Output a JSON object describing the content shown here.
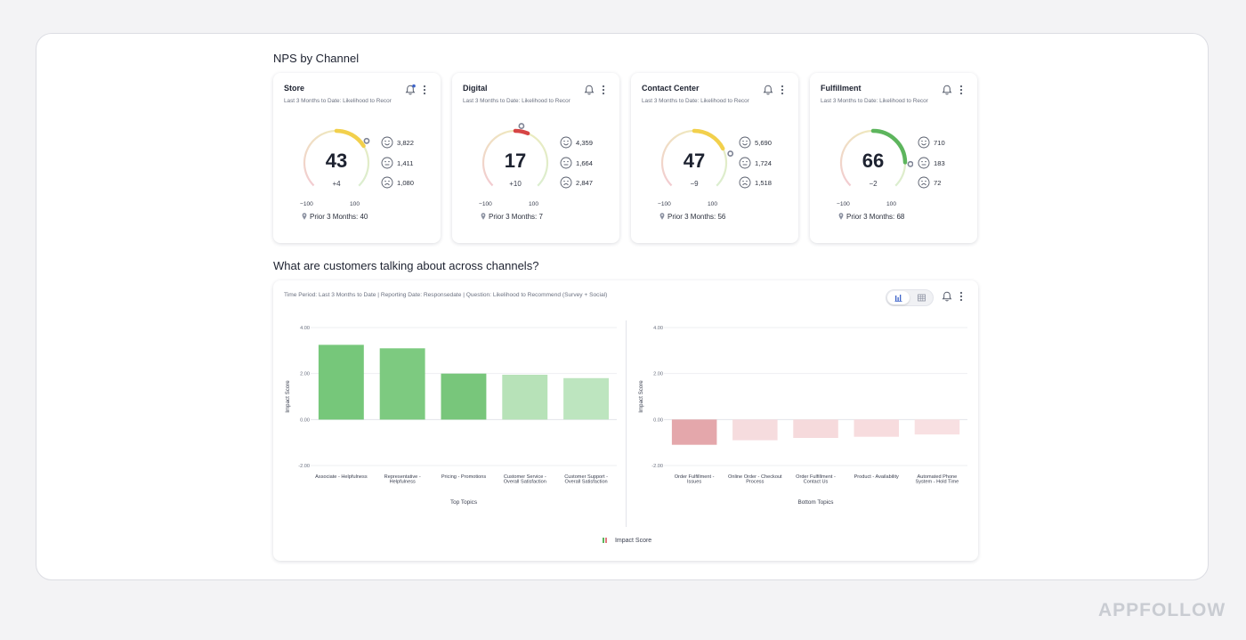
{
  "sections": {
    "nps_title": "NPS by Channel",
    "topics_title": "What are customers talking about across channels?"
  },
  "nps_cards": [
    {
      "title": "Store",
      "subtitle": "Last 3 Months to Date: Likelihood to Recor",
      "score": 43,
      "score_label": "43",
      "delta": "+4",
      "min": "−100",
      "max": "100",
      "prior": "Prior 3 Months: 40",
      "prior_score": 40,
      "promoters": "3,822",
      "passives": "1,411",
      "detractors": "1,080",
      "bell_alert": true,
      "arc_color": "#f2d04c"
    },
    {
      "title": "Digital",
      "subtitle": "Last 3 Months to Date: Likelihood to Recor",
      "score": 17,
      "score_label": "17",
      "delta": "+10",
      "min": "−100",
      "max": "100",
      "prior": "Prior 3 Months: 7",
      "prior_score": 7,
      "promoters": "4,359",
      "passives": "1,664",
      "detractors": "2,847",
      "bell_alert": false,
      "arc_color": "#d64545"
    },
    {
      "title": "Contact Center",
      "subtitle": "Last 3 Months to Date: Likelihood to Recor",
      "score": 47,
      "score_label": "47",
      "delta": "−9",
      "min": "−100",
      "max": "100",
      "prior": "Prior 3 Months: 56",
      "prior_score": 56,
      "promoters": "5,690",
      "passives": "1,724",
      "detractors": "1,518",
      "bell_alert": false,
      "arc_color": "#f2d04c"
    },
    {
      "title": "Fulfillment",
      "subtitle": "Last 3 Months to Date: Likelihood to Recor",
      "score": 66,
      "score_label": "66",
      "delta": "−2",
      "min": "−100",
      "max": "100",
      "prior": "Prior 3 Months: 68",
      "prior_score": 68,
      "promoters": "710",
      "passives": "183",
      "detractors": "72",
      "bell_alert": false,
      "arc_color": "#5db55d"
    }
  ],
  "topics_panel": {
    "subtitle": "Time Period: Last 3 Months to Date | Reporting Date: Responsedate | Question: Likelihood to Recommend (Survey + Social)",
    "view_toggle": [
      "bar-chart-icon",
      "table-icon"
    ],
    "active_view": "bar-chart-icon",
    "legend": "Impact Score"
  },
  "chart_data": [
    {
      "type": "bar",
      "title": "",
      "xlabel": "Top Topics",
      "ylabel": "Impact Score",
      "ylim": [
        -2,
        4
      ],
      "yticks": [
        "4.00",
        "2.00",
        "0.00",
        "-2.00"
      ],
      "ytick_values": [
        4,
        2,
        0,
        -2
      ],
      "categories": [
        [
          "Associate - Helpfulness"
        ],
        [
          "Representative -",
          "Helpfulness"
        ],
        [
          "Pricing - Promotions"
        ],
        [
          "Customer Service -",
          "Overall Satisfaction"
        ],
        [
          "Customer Support -",
          "Overall Satisfaction"
        ]
      ],
      "values": [
        3.25,
        3.1,
        2.0,
        1.95,
        1.8
      ],
      "colors": [
        "#76c77a",
        "#7dca80",
        "#78c67b",
        "#b7e2b8",
        "#bde5bf"
      ],
      "grid": true
    },
    {
      "type": "bar",
      "title": "",
      "xlabel": "Bottom Topics",
      "ylabel": "Impact Score",
      "ylim": [
        -2,
        4
      ],
      "yticks": [
        "4.00",
        "2.00",
        "0.00",
        "-2.00"
      ],
      "ytick_values": [
        4,
        2,
        0,
        -2
      ],
      "categories": [
        [
          "Order Fulfillment -",
          "Issues"
        ],
        [
          "Online Order - Checkout",
          "Process"
        ],
        [
          "Order Fulfillment -",
          "Contact Us"
        ],
        [
          "Product - Availability"
        ],
        [
          "Automated Phone",
          "System - Hold Time"
        ]
      ],
      "values": [
        -1.1,
        -0.9,
        -0.8,
        -0.75,
        -0.65
      ],
      "colors": [
        "#e4a7ab",
        "#f6dcde",
        "#f6dadc",
        "#f7dcde",
        "#f8e0e2"
      ],
      "grid": true
    }
  ],
  "watermark": "APPFOLLOW"
}
